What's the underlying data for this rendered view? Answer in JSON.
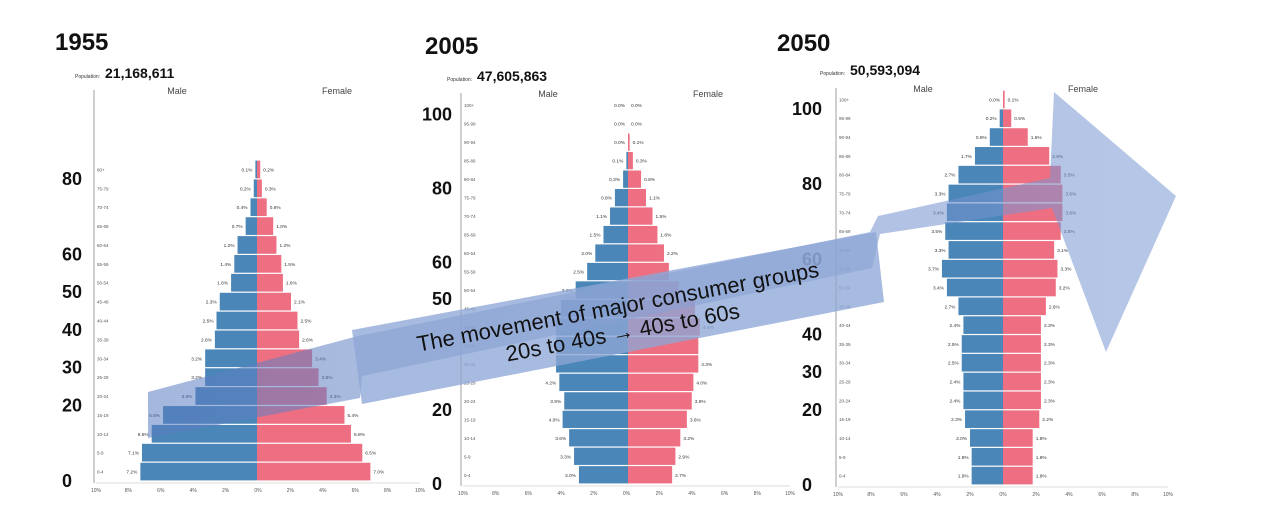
{
  "colors": {
    "male": "#4a86b8",
    "female": "#ee6f82",
    "male_dark": "#2f5f9a",
    "female_dark": "#b45c7e",
    "arrow": "#6f8fcc",
    "axis": "#888888",
    "grid_text": "#444444"
  },
  "banner": {
    "line1": "The movement of major consumer groups",
    "line2": "20s to 40s → 40s to 60s"
  },
  "chart_data": [
    {
      "type": "bar",
      "subtype": "population-pyramid",
      "title": "1955",
      "population_label": "Population:",
      "population": "21,168,611",
      "male_label": "Male",
      "female_label": "Female",
      "age_groups": [
        "0-4",
        "5-9",
        "10-14",
        "15-19",
        "20-24",
        "25-29",
        "30-34",
        "35-39",
        "40-44",
        "45-49",
        "50-54",
        "55-59",
        "60-64",
        "65-69",
        "70-74",
        "75-79",
        "80+"
      ],
      "series": [
        {
          "name": "Male",
          "values": [
            7.2,
            7.1,
            6.5,
            5.8,
            3.8,
            3.2,
            3.2,
            2.6,
            2.5,
            2.3,
            1.6,
            1.4,
            1.2,
            0.7,
            0.4,
            0.2,
            0.1
          ]
        },
        {
          "name": "Female",
          "values": [
            7.0,
            6.5,
            5.8,
            5.4,
            4.3,
            3.8,
            3.4,
            2.6,
            2.5,
            2.1,
            1.6,
            1.5,
            1.2,
            1.0,
            0.6,
            0.3,
            0.2
          ]
        }
      ],
      "male_labels": [
        "7.2%",
        "7.1%",
        "6.5%",
        "5.8%",
        "3.8%",
        "3.2%",
        "3.2%",
        "2.6%",
        "2.5%",
        "2.3%",
        "1.6%",
        "1.4%",
        "1.2%",
        "0.7%",
        "0.4%",
        "0.2%",
        "0.1%"
      ],
      "female_labels": [
        "7.0%",
        "6.5%",
        "5.8%",
        "5.4%",
        "4.3%",
        "3.8%",
        "3.4%",
        "2.6%",
        "2.5%",
        "2.1%",
        "1.6%",
        "1.5%",
        "1.2%",
        "1.0%",
        "0.6%",
        "0.3%",
        "0.2%"
      ],
      "x_ticks": [
        "10%",
        "8%",
        "6%",
        "4%",
        "2%",
        "0%",
        "2%",
        "4%",
        "6%",
        "8%",
        "10%"
      ],
      "big_ticks": [
        {
          "label": "80",
          "age": 80
        },
        {
          "label": "60",
          "age": 60
        },
        {
          "label": "50",
          "age": 50
        },
        {
          "label": "40",
          "age": 40
        },
        {
          "label": "30",
          "age": 30
        },
        {
          "label": "20",
          "age": 20
        },
        {
          "label": "0",
          "age": 0
        }
      ],
      "xlim": [
        -10,
        10
      ]
    },
    {
      "type": "bar",
      "subtype": "population-pyramid",
      "title": "2005",
      "population_label": "Population:",
      "population": "47,605,863",
      "male_label": "Male",
      "female_label": "Female",
      "age_groups": [
        "0-4",
        "5-9",
        "10-14",
        "15-19",
        "20-24",
        "25-29",
        "30-34",
        "35-39",
        "40-44",
        "45-49",
        "50-54",
        "55-59",
        "60-64",
        "65-69",
        "70-74",
        "75-79",
        "80-84",
        "85-89",
        "90-94",
        "95-99",
        "100+"
      ],
      "series": [
        {
          "name": "Male",
          "values": [
            3.0,
            3.3,
            3.6,
            4.0,
            3.9,
            4.2,
            4.4,
            4.4,
            4.4,
            4.1,
            3.2,
            2.5,
            2.0,
            1.5,
            1.1,
            0.8,
            0.3,
            0.1,
            0.0,
            0.0,
            0.0
          ]
        },
        {
          "name": "Female",
          "values": [
            2.7,
            2.9,
            3.2,
            3.6,
            3.9,
            4.0,
            4.3,
            4.3,
            4.4,
            4.1,
            3.1,
            2.5,
            2.2,
            1.8,
            1.5,
            1.1,
            0.8,
            0.3,
            0.1,
            0.0,
            0.0
          ]
        }
      ],
      "male_labels": [
        "3.0%",
        "3.3%",
        "3.6%",
        "4.0%",
        "3.9%",
        "4.2%",
        "",
        "",
        "",
        "",
        "3.2%",
        "2.5%",
        "2.0%",
        "1.5%",
        "1.1%",
        "0.8%",
        "0.3%",
        "0.1%",
        "0.0%",
        "0.0%",
        "0.0%"
      ],
      "female_labels": [
        "2.7%",
        "2.9%",
        "3.2%",
        "3.6%",
        "3.9%",
        "4.0%",
        "4.3%",
        "",
        "4.4%",
        "",
        "",
        "",
        "2.2%",
        "1.8%",
        "1.5%",
        "1.1%",
        "0.8%",
        "0.3%",
        "0.1%",
        "0.0%",
        "0.0%"
      ],
      "x_ticks": [
        "10%",
        "8%",
        "6%",
        "4%",
        "2%",
        "0%",
        "2%",
        "4%",
        "6%",
        "8%",
        "10%"
      ],
      "big_ticks": [
        {
          "label": "100",
          "age": 100
        },
        {
          "label": "80",
          "age": 80
        },
        {
          "label": "60",
          "age": 60
        },
        {
          "label": "50",
          "age": 50
        },
        {
          "label": "20",
          "age": 20
        },
        {
          "label": "0",
          "age": 0
        }
      ],
      "xlim": [
        -10,
        10
      ]
    },
    {
      "type": "bar",
      "subtype": "population-pyramid",
      "title": "2050",
      "population_label": "Population:",
      "population": "50,593,094",
      "male_label": "Male",
      "female_label": "Female",
      "age_groups": [
        "0-4",
        "5-9",
        "10-14",
        "15-19",
        "20-24",
        "25-29",
        "30-34",
        "35-39",
        "40-44",
        "45-49",
        "50-54",
        "55-59",
        "60-64",
        "65-69",
        "70-74",
        "75-79",
        "80-84",
        "85-89",
        "90-94",
        "95-99",
        "100+"
      ],
      "series": [
        {
          "name": "Male",
          "values": [
            1.9,
            1.9,
            2.0,
            2.3,
            2.4,
            2.4,
            2.5,
            2.5,
            2.4,
            2.7,
            3.4,
            3.7,
            3.3,
            3.5,
            3.4,
            3.3,
            2.7,
            1.7,
            0.8,
            0.2,
            0.0
          ]
        },
        {
          "name": "Female",
          "values": [
            1.8,
            1.8,
            1.8,
            2.2,
            2.3,
            2.3,
            2.3,
            2.3,
            2.3,
            2.6,
            3.2,
            3.3,
            3.1,
            3.5,
            3.6,
            3.6,
            3.5,
            2.8,
            1.5,
            0.5,
            0.1
          ]
        }
      ],
      "male_labels": [
        "1.9%",
        "1.9%",
        "2.0%",
        "2.3%",
        "2.4%",
        "2.4%",
        "2.5%",
        "2.5%",
        "2.4%",
        "2.7%",
        "3.4%",
        "3.7%",
        "3.3%",
        "3.5%",
        "3.4%",
        "3.3%",
        "2.7%",
        "1.7%",
        "0.8%",
        "0.2%",
        "0.0%"
      ],
      "female_labels": [
        "1.8%",
        "1.8%",
        "1.8%",
        "2.2%",
        "2.3%",
        "2.3%",
        "2.3%",
        "2.3%",
        "2.3%",
        "2.6%",
        "3.2%",
        "3.3%",
        "3.1%",
        "3.5%",
        "3.6%",
        "3.6%",
        "3.5%",
        "2.8%",
        "1.5%",
        "0.5%",
        "0.1%"
      ],
      "x_ticks": [
        "10%",
        "8%",
        "6%",
        "4%",
        "2%",
        "0%",
        "2%",
        "4%",
        "6%",
        "8%",
        "10%"
      ],
      "big_ticks": [
        {
          "label": "100",
          "age": 100
        },
        {
          "label": "80",
          "age": 80
        },
        {
          "label": "60",
          "age": 60
        },
        {
          "label": "40",
          "age": 40
        },
        {
          "label": "30",
          "age": 30
        },
        {
          "label": "20",
          "age": 20
        },
        {
          "label": "0",
          "age": 0
        }
      ],
      "xlim": [
        -10,
        10
      ]
    }
  ]
}
